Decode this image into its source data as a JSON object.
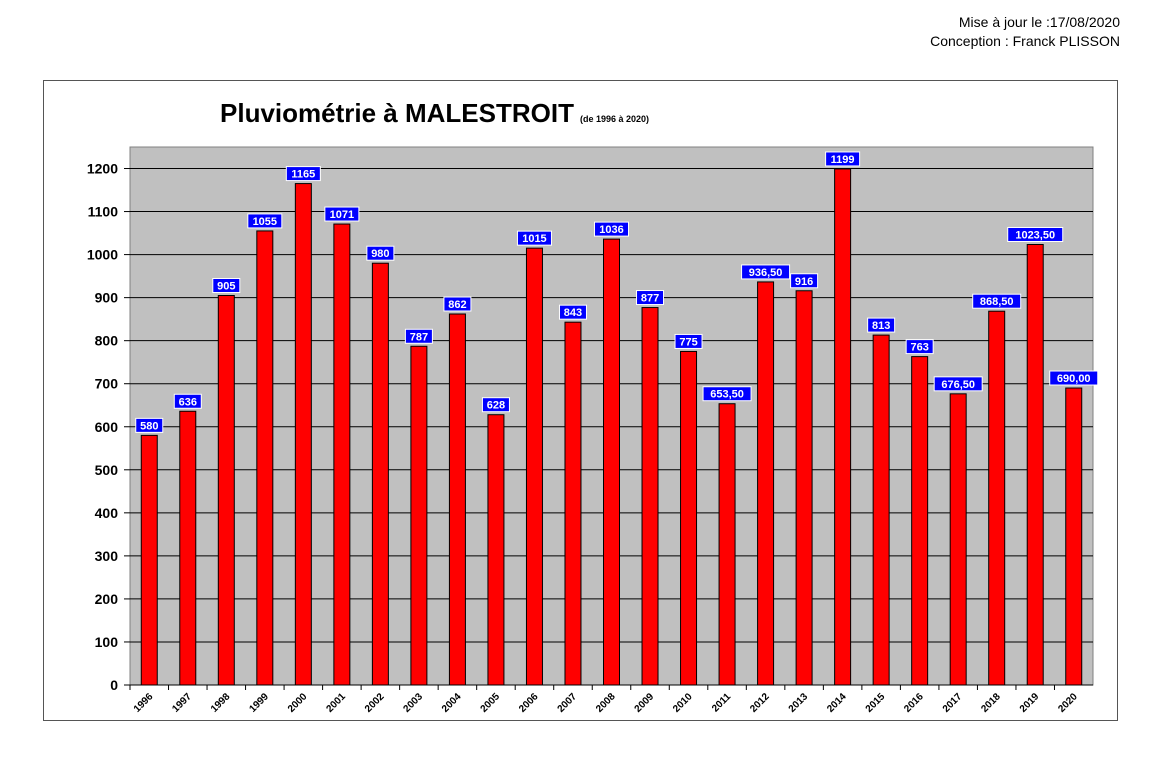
{
  "header": {
    "updated": "Mise à jour le :17/08/2020",
    "author": "Conception : Franck PLISSON"
  },
  "chart_data": {
    "type": "bar",
    "title": "Pluviométrie à MALESTROIT",
    "subtitle": "(de 1996 à 2020)",
    "xlabel": "",
    "ylabel": "",
    "ylim": [
      0,
      1250
    ],
    "yticks": [
      0,
      100,
      200,
      300,
      400,
      500,
      600,
      700,
      800,
      900,
      1000,
      1100,
      1200
    ],
    "grid": true,
    "categories": [
      "1996",
      "1997",
      "1998",
      "1999",
      "2000",
      "2001",
      "2002",
      "2003",
      "2004",
      "2005",
      "2006",
      "2007",
      "2008",
      "2009",
      "2010",
      "2011",
      "2012",
      "2013",
      "2014",
      "2015",
      "2016",
      "2017",
      "2018",
      "2019",
      "2020"
    ],
    "values": [
      580,
      636,
      905,
      1055,
      1165,
      1071,
      980,
      787,
      862,
      628,
      1015,
      843,
      1036,
      877,
      775,
      653.5,
      936.5,
      916,
      1199,
      813,
      763,
      676.5,
      868.5,
      1023.5,
      690
    ],
    "data_labels": [
      "580",
      "636",
      "905",
      "1055",
      "1165",
      "1071",
      "980",
      "787",
      "862",
      "628",
      "1015",
      "843",
      "1036",
      "877",
      "775",
      "653,50",
      "936,50",
      "916",
      "1199",
      "813",
      "763",
      "676,50",
      "868,50",
      "1023,50",
      "690,00"
    ],
    "colors": {
      "bar": "#ff0000",
      "plot_bg": "#c0c0c0",
      "label_bg": "#0000ff"
    }
  }
}
